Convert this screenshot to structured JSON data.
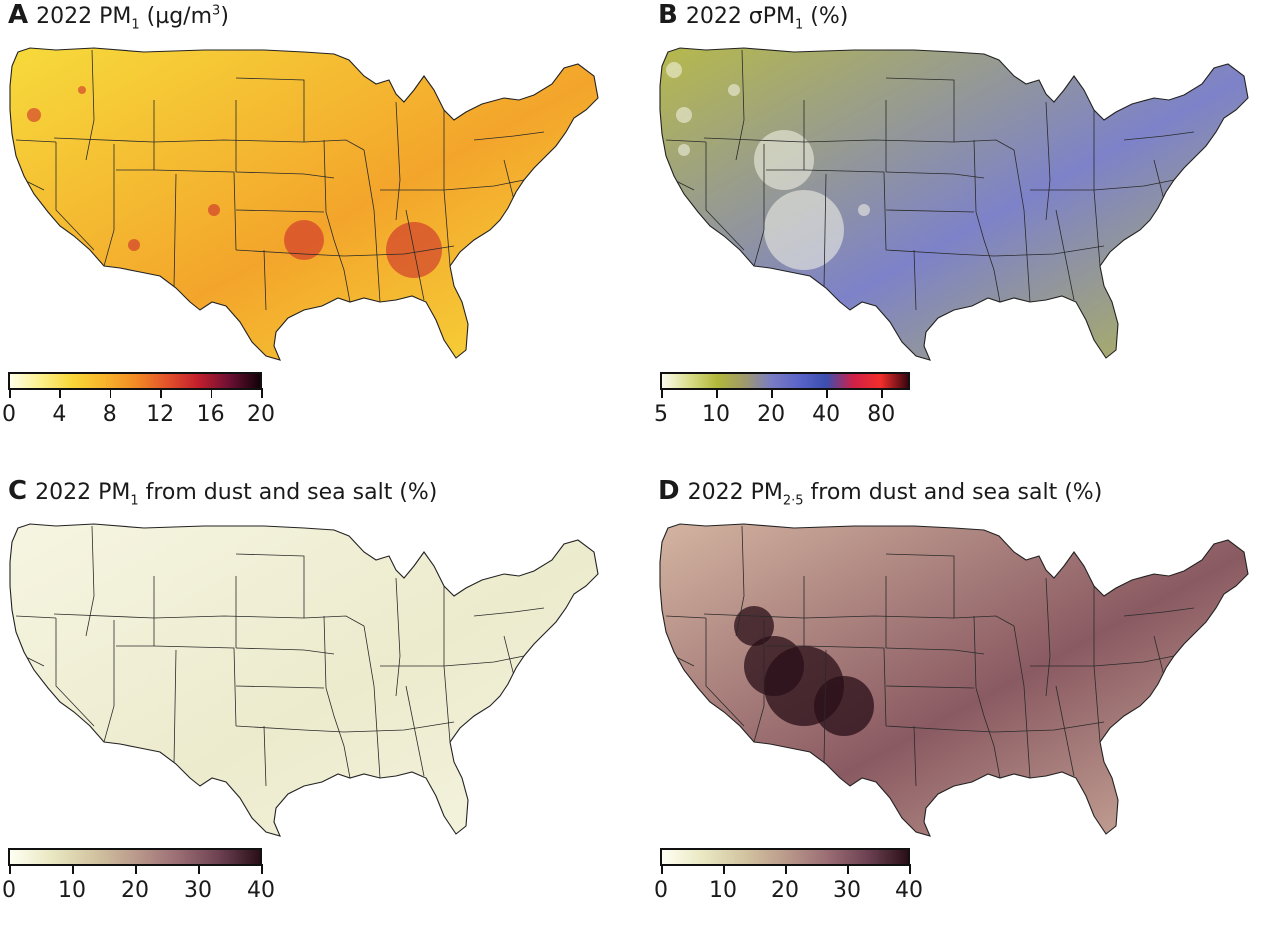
{
  "panels": [
    {
      "letter": "A",
      "title_pre": "2022 PM",
      "title_sub": "1",
      "title_post": " (µg/m",
      "title_sup": "3",
      "title_end": ")",
      "colors": [
        "#ffffe8",
        "#fbf08a",
        "#f8d738",
        "#f7b52c",
        "#f28c25",
        "#e4542a",
        "#c31f2c",
        "#6e1033",
        "#120209"
      ],
      "ticks": [
        "0",
        "4",
        "8",
        "12",
        "16",
        "20"
      ],
      "tick_values": [
        0,
        4,
        8,
        12,
        16,
        20
      ],
      "range": [
        0,
        20
      ],
      "map_base": "#f7dc3c",
      "map_accent": "#f3a52b",
      "map_hot": "#c9202c"
    },
    {
      "letter": "B",
      "title_pre": "2022 σPM",
      "title_sub": "1",
      "title_post": " (%)",
      "title_sup": "",
      "title_end": "",
      "colors": [
        "#fbfbf0",
        "#d9dd8a",
        "#b2b83a",
        "#9f9a6a",
        "#7a7cc4",
        "#5b64c8",
        "#3b4fb0",
        "#d02048",
        "#f22e2a",
        "#3a0510"
      ],
      "ticks": [
        "5",
        "10",
        "20",
        "40",
        "80"
      ],
      "tick_values": [
        0,
        0.222,
        0.444,
        0.666,
        0.888
      ],
      "range": [
        0,
        1
      ],
      "map_base": "#b8bb47",
      "map_accent": "#7d82c9",
      "map_hot": "#f5f5ea"
    },
    {
      "letter": "C",
      "title_pre": "2022 PM",
      "title_sub": "1",
      "title_post": " from dust and sea salt (%)",
      "title_sup": "",
      "title_end": "",
      "colors": [
        "#fffff2",
        "#e9e8c2",
        "#d3c5a1",
        "#bb9b8c",
        "#9c6f75",
        "#6e4252",
        "#2a0f18"
      ],
      "ticks": [
        "0",
        "10",
        "20",
        "30",
        "40"
      ],
      "tick_values": [
        0,
        10,
        20,
        30,
        40
      ],
      "range": [
        0,
        40
      ],
      "map_base": "#f6f5e2",
      "map_accent": "#ecebcd",
      "map_hot": "#b98d86"
    },
    {
      "letter": "D",
      "title_pre": "2022 PM",
      "title_sub": "2·5",
      "title_post": " from dust and sea salt (%)",
      "title_sup": "",
      "title_end": "",
      "colors": [
        "#fffff2",
        "#e9e8c2",
        "#d3c5a1",
        "#bb9b8c",
        "#9c6f75",
        "#6e4252",
        "#2a0f18"
      ],
      "ticks": [
        "0",
        "10",
        "20",
        "30",
        "40"
      ],
      "tick_values": [
        0,
        10,
        20,
        30,
        40
      ],
      "range": [
        0,
        40
      ],
      "map_base": "#d6b7a3",
      "map_accent": "#8a5a62",
      "map_hot": "#2a0f18"
    }
  ]
}
